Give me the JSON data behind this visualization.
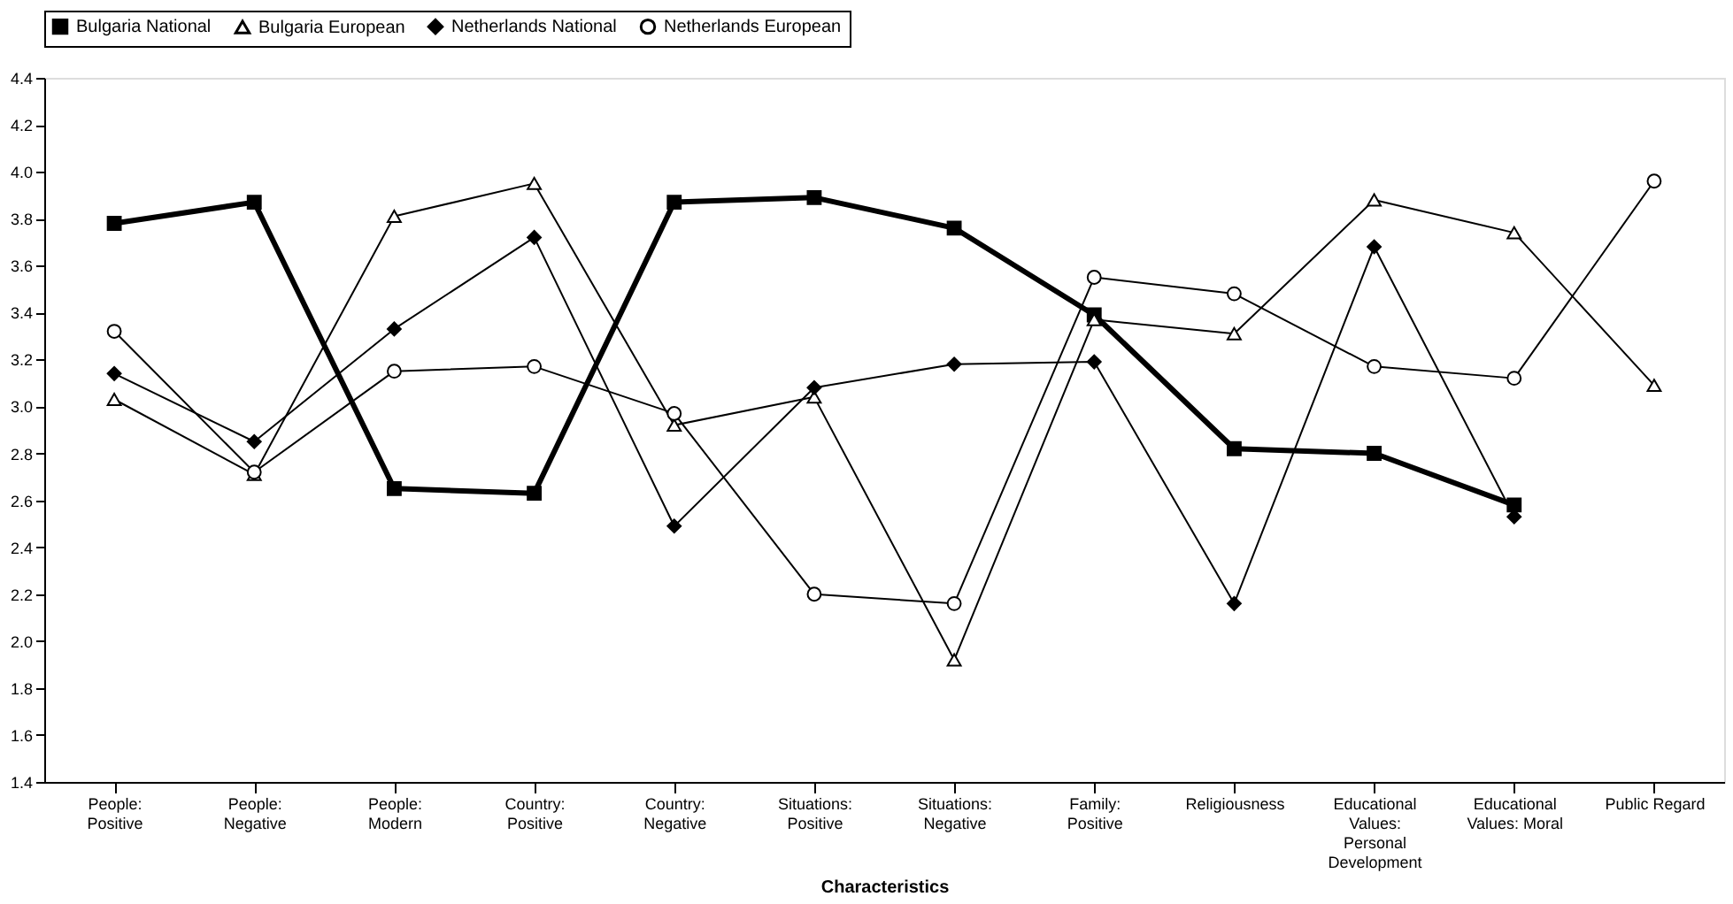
{
  "chart_data": {
    "type": "line",
    "xlabel": "Characteristics",
    "legend": "top",
    "grid": false,
    "categories": [
      "People: Positive",
      "People: Negative",
      "People: Modern",
      "Country: Positive",
      "Country: Negative",
      "Situations: Positive",
      "Situations: Negative",
      "Family: Positive",
      "Religiousness",
      "Educational Values: Personal Development",
      "Educational Values: Moral",
      "Public Regard"
    ],
    "ylim": [
      1.4,
      4.4
    ],
    "yticks": [
      {
        "value": 1.4,
        "label": "1.4"
      },
      {
        "value": 1.6,
        "label": "1.6"
      },
      {
        "value": 1.8,
        "label": "1.8"
      },
      {
        "value": 2.0,
        "label": "2.0"
      },
      {
        "value": 2.2,
        "label": "2.2"
      },
      {
        "value": 2.4,
        "label": "2.4"
      },
      {
        "value": 2.6,
        "label": "2.6"
      },
      {
        "value": 2.8,
        "label": "2.8"
      },
      {
        "value": 3.0,
        "label": "3.0"
      },
      {
        "value": 3.2,
        "label": "3.2"
      },
      {
        "value": 3.4,
        "label": "3.4"
      },
      {
        "value": 3.6,
        "label": "3.6"
      },
      {
        "value": 3.8,
        "label": "3.8"
      },
      {
        "value": 4.0,
        "label": "4.0"
      },
      {
        "value": 4.2,
        "label": "4.2"
      },
      {
        "value": 4.4,
        "label": "4.4"
      }
    ],
    "series": [
      {
        "name": "Bulgaria National",
        "color": "#000000",
        "marker": "square",
        "line_style": "solid",
        "values": [
          3.78,
          3.87,
          2.65,
          2.63,
          3.87,
          3.89,
          3.76,
          3.39,
          2.82,
          2.8,
          2.58,
          null
        ]
      },
      {
        "name": "Bulgaria European",
        "color": "#000000",
        "marker": "triangle",
        "line_style": "solid",
        "values": [
          3.03,
          2.71,
          3.81,
          3.95,
          2.92,
          3.04,
          1.92,
          3.37,
          3.31,
          3.88,
          3.74,
          3.09
        ]
      },
      {
        "name": "Netherlands National",
        "color": "#000000",
        "marker": "diamond",
        "line_style": "solid",
        "values": [
          3.14,
          2.85,
          3.33,
          3.72,
          2.49,
          3.08,
          3.18,
          3.19,
          2.16,
          3.68,
          2.53,
          null
        ]
      },
      {
        "name": "Netherlands European",
        "color": "#000000",
        "marker": "circle",
        "line_style": "solid",
        "values": [
          3.32,
          2.72,
          3.15,
          3.17,
          2.97,
          2.2,
          2.16,
          3.55,
          3.48,
          3.17,
          3.12,
          3.96
        ]
      }
    ]
  }
}
